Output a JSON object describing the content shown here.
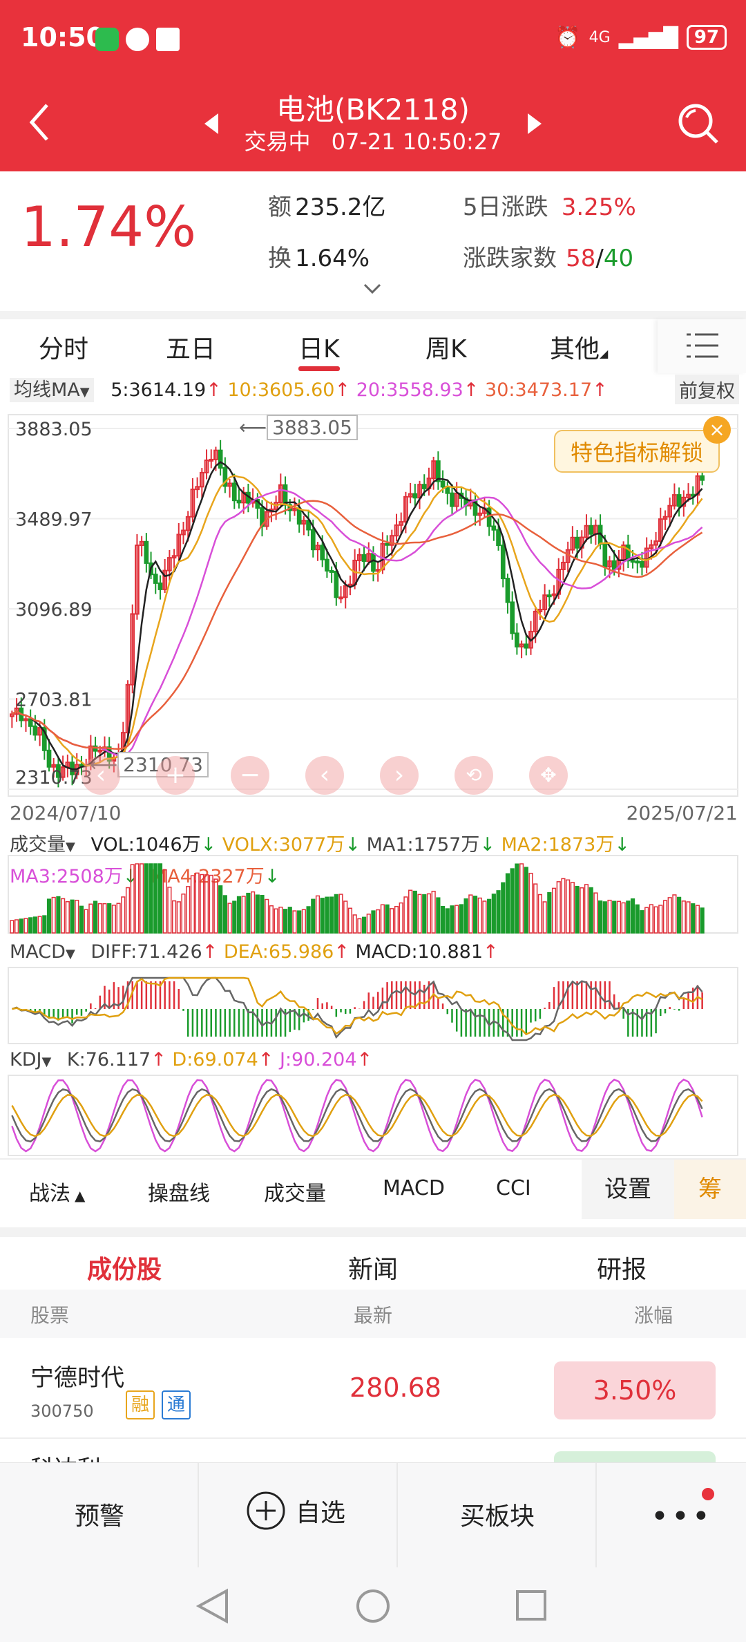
{
  "status": {
    "time": "10:50",
    "network": "4G",
    "battery": "97"
  },
  "header": {
    "title": "电池(BK2118)",
    "status_text": "交易中",
    "datetime": "07-21 10:50:27"
  },
  "quote": {
    "change_pct": "1.74%",
    "amount_label": "额",
    "amount_value": "235.2亿",
    "turnover_label": "换",
    "turnover_value": "1.64%",
    "five_day_label": "5日涨跌",
    "five_day_value": "3.25%",
    "updown_label": "涨跌家数",
    "up_count": "58",
    "slash": "/",
    "down_count": "40"
  },
  "period_tabs": [
    "分时",
    "五日",
    "日K",
    "周K",
    "其他"
  ],
  "active_period": "日K",
  "ma_row": {
    "label": "均线MA",
    "ma5": "5:3614.19",
    "ma10": "10:3605.60",
    "ma20": "20:3558.93",
    "ma30": "30:3473.17",
    "adjust": "前复权"
  },
  "price_axis": [
    "3883.05",
    "3489.97",
    "3096.89",
    "2703.81",
    "2310.73"
  ],
  "high_marker": "3883.05",
  "low_marker": "2310.73",
  "promo_badge": "特色指标解锁",
  "date_range": {
    "start": "2024/07/10",
    "end": "2025/07/21"
  },
  "volume": {
    "label": "成交量",
    "vol": "VOL:1046万",
    "volx": "VOLX:3077万",
    "ma1": "MA1:1757万",
    "ma2": "MA2:1873万",
    "ma3": "MA3:2508万",
    "ma4": "MA4:2327万"
  },
  "macd": {
    "label": "MACD",
    "diff": "DIFF:71.426",
    "dea": "DEA:65.986",
    "macd": "MACD:10.881"
  },
  "kdj": {
    "label": "KDJ",
    "k": "K:76.117",
    "d": "D:69.074",
    "j": "J:90.204"
  },
  "indicator_tabs": [
    "战法",
    "操盘线",
    "成交量",
    "MACD",
    "CCI"
  ],
  "settings_label": "设置",
  "chip_label": "筹",
  "section_tabs": [
    "成份股",
    "新闻",
    "研报"
  ],
  "table": {
    "headers": [
      "股票",
      "最新",
      "涨幅"
    ],
    "rows": [
      {
        "name": "宁德时代",
        "code": "300750",
        "tags": [
          "融",
          "通"
        ],
        "price": "280.68",
        "change": "3.50%"
      },
      {
        "name": "科达利"
      }
    ]
  },
  "bottom_bar": {
    "alert": "预警",
    "watchlist": "自选",
    "buy_sector": "买板块"
  },
  "colors": {
    "brand_red": "#e8323c",
    "up": "#e0303a",
    "down": "#1a9b2c",
    "ma5": "#222222",
    "ma10": "#e8a51c",
    "ma20": "#d84fd8",
    "ma30": "#e8603c"
  },
  "chart_data": {
    "type": "candlestick",
    "x": [
      "2024/07/10",
      "2025/07/21"
    ],
    "ylim": [
      2310.73,
      3883.05
    ],
    "yticks": [
      3883.05,
      3489.97,
      3096.89,
      2703.81,
      2310.73
    ],
    "series": [
      {
        "name": "MA5",
        "last": 3614.19
      },
      {
        "name": "MA10",
        "last": 3605.6
      },
      {
        "name": "MA20",
        "last": 3558.93
      },
      {
        "name": "MA30",
        "last": 3473.17
      }
    ],
    "close_path": [
      2620,
      2650,
      2580,
      2530,
      2420,
      2380,
      2400,
      2420,
      2440,
      2500,
      2480,
      2400,
      2700,
      3400,
      3300,
      3200,
      3250,
      3350,
      3480,
      3600,
      3700,
      3820,
      3650,
      3600,
      3580,
      3560,
      3500,
      3520,
      3600,
      3550,
      3480,
      3420,
      3360,
      3250,
      3150,
      3200,
      3300,
      3350,
      3250,
      3380,
      3450,
      3550,
      3600,
      3650,
      3700,
      3620,
      3580,
      3560,
      3550,
      3520,
      3450,
      3350,
      3000,
      2900,
      3000,
      3100,
      3150,
      3250,
      3350,
      3400,
      3450,
      3420,
      3300,
      3280,
      3350,
      3300,
      3300,
      3400,
      3520,
      3550,
      3580,
      3620,
      3650
    ]
  }
}
